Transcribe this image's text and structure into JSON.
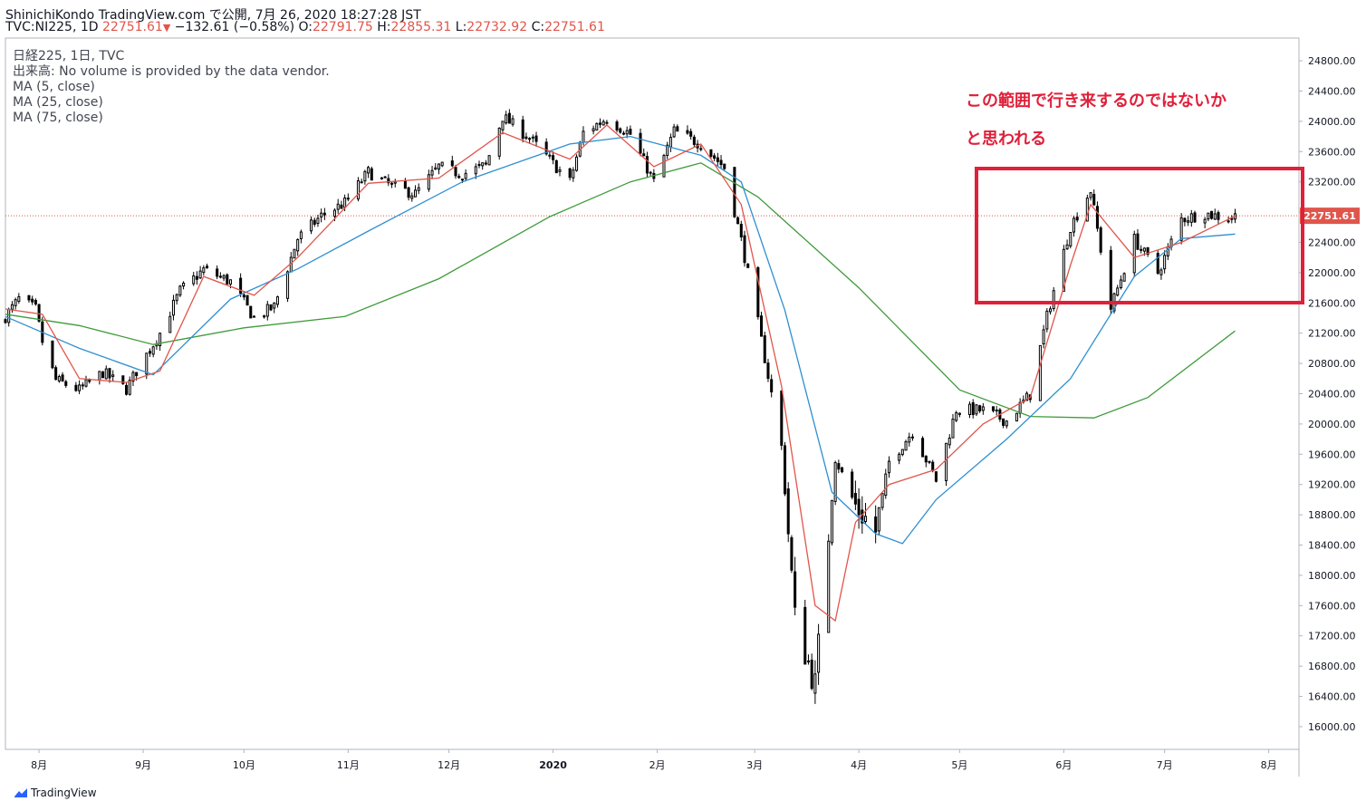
{
  "header": {
    "line1": "ShinichiKondo TradingView.com で公開, 7月 26, 2020 18:27:28 JST",
    "symbol": "TVC:NI225, 1D",
    "last": "22751.61",
    "arrow": "▼",
    "change": "−132.61 (−0.58%)",
    "o_label": "O:",
    "o_value": "22791.75",
    "h_label": "H:",
    "h_value": "22855.31",
    "l_label": "L:",
    "l_value": "22732.92",
    "c_label": "C:",
    "c_value": "22751.61"
  },
  "legend": {
    "title": "日経225, 1日, TVC",
    "volume": "出来高: No volume is provided by the data vendor.",
    "ma5": "MA (5, close)",
    "ma25": "MA (25, close)",
    "ma75": "MA (75, close)"
  },
  "annotation": {
    "line1": "この範囲で行き来するのではないか",
    "line2": "と思われる"
  },
  "footer": {
    "brand": "TradingView"
  },
  "colors": {
    "up": "#ffffff",
    "down": "#000000",
    "wick": "#000000",
    "ma5": "#e0554b",
    "ma25": "#2f8fd1",
    "ma75": "#3e9b3a",
    "annotation": "#e0203a",
    "price_tag": "#e0554b"
  },
  "chart_data": {
    "type": "candlestick",
    "y_ticks": [
      16000,
      16400,
      16800,
      17200,
      17600,
      18000,
      18400,
      18800,
      19200,
      19600,
      20000,
      20400,
      20800,
      21200,
      21600,
      22000,
      22400,
      22800,
      23200,
      23600,
      24000,
      24400,
      24800
    ],
    "y_tick_labels": [
      "16000.00",
      "16400.00",
      "16800.00",
      "17200.00",
      "17600.00",
      "18000.00",
      "18400.00",
      "18800.00",
      "19200.00",
      "19600.00",
      "20000.00",
      "20400.00",
      "20800.00",
      "21200.00",
      "21600.00",
      "22000.00",
      "22400.00",
      "22800.00",
      "23200.00",
      "23600.00",
      "24000.00",
      "24400.00",
      "24800.00"
    ],
    "ylim": [
      15700,
      25100
    ],
    "x_range": [
      "2019-07-22",
      "2020-08-10"
    ],
    "x_ticks": [
      {
        "date": "2019-08-01",
        "label": "8月"
      },
      {
        "date": "2019-09-01",
        "label": "9月"
      },
      {
        "date": "2019-10-01",
        "label": "10月"
      },
      {
        "date": "2019-11-01",
        "label": "11月"
      },
      {
        "date": "2019-12-01",
        "label": "12月"
      },
      {
        "date": "2020-01-01",
        "label": "2020"
      },
      {
        "date": "2020-02-01",
        "label": "2月"
      },
      {
        "date": "2020-03-01",
        "label": "3月"
      },
      {
        "date": "2020-04-01",
        "label": "4月"
      },
      {
        "date": "2020-05-01",
        "label": "5月"
      },
      {
        "date": "2020-06-01",
        "label": "6月"
      },
      {
        "date": "2020-07-01",
        "label": "7月"
      },
      {
        "date": "2020-08-01",
        "label": "8月"
      }
    ],
    "last_price": 22751.61,
    "last_price_label": "22751.61",
    "close_path": [
      [
        "2019-07-22",
        21420
      ],
      [
        "2019-07-26",
        21650
      ],
      [
        "2019-07-31",
        21520
      ],
      [
        "2019-08-02",
        21090
      ],
      [
        "2019-08-06",
        20580
      ],
      [
        "2019-08-13",
        20450
      ],
      [
        "2019-08-20",
        20680
      ],
      [
        "2019-08-27",
        20460
      ],
      [
        "2019-08-30",
        20700
      ],
      [
        "2019-09-06",
        21200
      ],
      [
        "2019-09-12",
        21760
      ],
      [
        "2019-09-19",
        22040
      ],
      [
        "2019-09-27",
        21880
      ],
      [
        "2019-10-04",
        21400
      ],
      [
        "2019-10-10",
        21550
      ],
      [
        "2019-10-17",
        22450
      ],
      [
        "2019-10-24",
        22750
      ],
      [
        "2019-10-31",
        22920
      ],
      [
        "2019-11-07",
        23330
      ],
      [
        "2019-11-14",
        23140
      ],
      [
        "2019-11-21",
        23040
      ],
      [
        "2019-11-28",
        23400
      ],
      [
        "2019-12-05",
        23300
      ],
      [
        "2019-12-12",
        23420
      ],
      [
        "2019-12-17",
        24060
      ],
      [
        "2019-12-25",
        23780
      ],
      [
        "2020-01-06",
        23200
      ],
      [
        "2020-01-10",
        23850
      ],
      [
        "2020-01-17",
        24040
      ],
      [
        "2020-01-24",
        23830
      ],
      [
        "2020-01-31",
        23200
      ],
      [
        "2020-02-06",
        23870
      ],
      [
        "2020-02-14",
        23700
      ],
      [
        "2020-02-21",
        23390
      ],
      [
        "2020-02-26",
        22430
      ],
      [
        "2020-03-02",
        21340
      ],
      [
        "2020-03-09",
        19700
      ],
      [
        "2020-03-13",
        17430
      ],
      [
        "2020-03-19",
        16550
      ],
      [
        "2020-03-25",
        19550
      ],
      [
        "2020-03-31",
        18920
      ],
      [
        "2020-04-06",
        18580
      ],
      [
        "2020-04-10",
        19500
      ],
      [
        "2020-04-17",
        19900
      ],
      [
        "2020-04-24",
        19260
      ],
      [
        "2020-04-30",
        20190
      ],
      [
        "2020-05-08",
        20180
      ],
      [
        "2020-05-15",
        20040
      ],
      [
        "2020-05-22",
        20390
      ],
      [
        "2020-05-27",
        21420
      ],
      [
        "2020-06-03",
        22610
      ],
      [
        "2020-06-09",
        23090
      ],
      [
        "2020-06-15",
        21530
      ],
      [
        "2020-06-22",
        22440
      ],
      [
        "2020-06-29",
        22000
      ],
      [
        "2020-07-06",
        22710
      ],
      [
        "2020-07-13",
        22780
      ],
      [
        "2020-07-20",
        22720
      ],
      [
        "2020-07-22",
        22751.61
      ]
    ],
    "ma5_path": [
      [
        "2019-07-22",
        21520
      ],
      [
        "2019-08-02",
        21450
      ],
      [
        "2019-08-13",
        20600
      ],
      [
        "2019-08-27",
        20550
      ],
      [
        "2019-09-06",
        20700
      ],
      [
        "2019-09-19",
        21950
      ],
      [
        "2019-10-04",
        21700
      ],
      [
        "2019-10-17",
        22200
      ],
      [
        "2019-11-07",
        23180
      ],
      [
        "2019-11-28",
        23250
      ],
      [
        "2019-12-17",
        23850
      ],
      [
        "2020-01-06",
        23500
      ],
      [
        "2020-01-17",
        23950
      ],
      [
        "2020-01-31",
        23400
      ],
      [
        "2020-02-14",
        23700
      ],
      [
        "2020-02-26",
        22900
      ],
      [
        "2020-03-09",
        20500
      ],
      [
        "2020-03-19",
        17600
      ],
      [
        "2020-03-25",
        17400
      ],
      [
        "2020-03-31",
        18700
      ],
      [
        "2020-04-10",
        19200
      ],
      [
        "2020-04-24",
        19400
      ],
      [
        "2020-05-08",
        20000
      ],
      [
        "2020-05-22",
        20350
      ],
      [
        "2020-06-03",
        22100
      ],
      [
        "2020-06-09",
        22900
      ],
      [
        "2020-06-22",
        22200
      ],
      [
        "2020-07-06",
        22400
      ],
      [
        "2020-07-22",
        22750
      ]
    ],
    "ma25_path": [
      [
        "2019-07-22",
        21420
      ],
      [
        "2019-08-13",
        21000
      ],
      [
        "2019-09-04",
        20650
      ],
      [
        "2019-09-27",
        21650
      ],
      [
        "2019-10-17",
        22050
      ],
      [
        "2019-11-07",
        22550
      ],
      [
        "2019-12-05",
        23200
      ],
      [
        "2020-01-06",
        23700
      ],
      [
        "2020-01-24",
        23800
      ],
      [
        "2020-02-14",
        23550
      ],
      [
        "2020-02-26",
        23200
      ],
      [
        "2020-03-10",
        21500
      ],
      [
        "2020-03-24",
        19100
      ],
      [
        "2020-04-06",
        18550
      ],
      [
        "2020-04-14",
        18420
      ],
      [
        "2020-04-24",
        19000
      ],
      [
        "2020-05-15",
        19800
      ],
      [
        "2020-06-03",
        20600
      ],
      [
        "2020-06-22",
        21950
      ],
      [
        "2020-07-06",
        22450
      ],
      [
        "2020-07-22",
        22510
      ]
    ],
    "ma75_path": [
      [
        "2019-07-22",
        21450
      ],
      [
        "2019-08-13",
        21300
      ],
      [
        "2019-09-04",
        21050
      ],
      [
        "2019-10-01",
        21270
      ],
      [
        "2019-10-31",
        21420
      ],
      [
        "2019-11-28",
        21920
      ],
      [
        "2019-12-31",
        22740
      ],
      [
        "2020-01-24",
        23200
      ],
      [
        "2020-02-14",
        23450
      ],
      [
        "2020-03-02",
        23000
      ],
      [
        "2020-04-01",
        21800
      ],
      [
        "2020-05-01",
        20450
      ],
      [
        "2020-05-22",
        20100
      ],
      [
        "2020-06-10",
        20080
      ],
      [
        "2020-06-26",
        20350
      ],
      [
        "2020-07-22",
        21230
      ]
    ]
  }
}
